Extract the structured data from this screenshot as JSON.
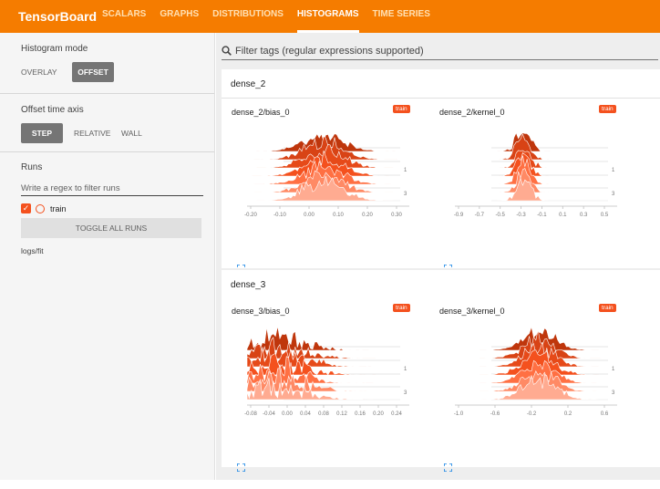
{
  "app": {
    "title": "TensorBoard"
  },
  "nav": {
    "tabs": [
      "SCALARS",
      "GRAPHS",
      "DISTRIBUTIONS",
      "HISTOGRAMS",
      "TIME SERIES"
    ],
    "active": "HISTOGRAMS"
  },
  "sidebar": {
    "histogram_mode": {
      "title": "Histogram mode",
      "options": [
        "OVERLAY",
        "OFFSET"
      ],
      "selected": "OFFSET"
    },
    "offset_axis": {
      "title": "Offset time axis",
      "options": [
        "STEP",
        "RELATIVE",
        "WALL"
      ],
      "selected": "STEP"
    },
    "runs": {
      "title": "Runs",
      "filter_placeholder": "Write a regex to filter runs",
      "items": [
        {
          "label": "train",
          "checked": true
        }
      ],
      "toggle_all_label": "TOGGLE ALL RUNS",
      "logdir": "logs/fit"
    }
  },
  "main": {
    "filter_placeholder": "Filter tags (regular expressions supported)",
    "groups": [
      {
        "name": "dense_2",
        "charts": [
          {
            "title": "dense_2/bias_0",
            "badge": "train",
            "x_ticks": [
              "-0.20",
              "-0.10",
              "0.00",
              "0.10",
              "0.20",
              "0.30"
            ],
            "y_ticks": [
              "1",
              "3"
            ]
          },
          {
            "title": "dense_2/kernel_0",
            "badge": "train",
            "x_ticks": [
              "-0.9",
              "-0.7",
              "-0.5",
              "-0.3",
              "-0.1",
              "0.1",
              "0.3",
              "0.5"
            ],
            "y_ticks": [
              "1",
              "3"
            ]
          }
        ]
      },
      {
        "name": "dense_3",
        "charts": [
          {
            "title": "dense_3/bias_0",
            "badge": "train",
            "x_ticks": [
              "-0.08",
              "-0.04",
              "0.00",
              "0.04",
              "0.08",
              "0.12",
              "0.16",
              "0.20",
              "0.24"
            ],
            "y_ticks": [
              "1",
              "3"
            ]
          },
          {
            "title": "dense_3/kernel_0",
            "badge": "train",
            "x_ticks": [
              "-1.0",
              "-0.6",
              "-0.2",
              "0.2",
              "0.6"
            ],
            "y_ticks": [
              "1",
              "3"
            ]
          }
        ]
      }
    ]
  },
  "colors": {
    "accent": "#f57c00",
    "badge": "#f4511e",
    "ridge_back": "#bf360c",
    "ridge_front": "#ffab91"
  }
}
